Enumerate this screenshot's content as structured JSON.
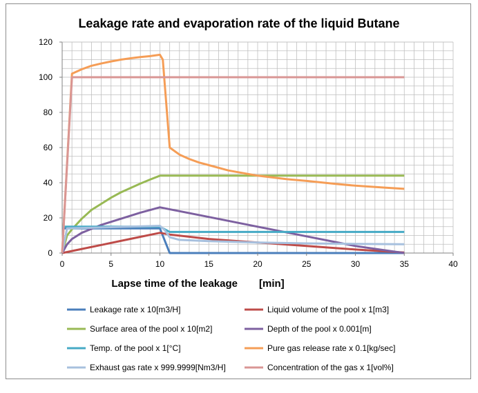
{
  "chart_data": {
    "type": "line",
    "title": "Leakage rate and evaporation rate of the liquid Butane",
    "xlabel": "Lapse time of the leakage",
    "xunit": "[min]",
    "ylabel": "",
    "xlim": [
      0,
      40
    ],
    "ylim": [
      0,
      120
    ],
    "x_ticks": [
      0,
      5,
      10,
      15,
      20,
      25,
      30,
      35,
      40
    ],
    "y_ticks": [
      0,
      20,
      40,
      60,
      80,
      100,
      120
    ],
    "grid": true,
    "legend_position": "bottom",
    "series": [
      {
        "name": "Leakage rate x 10[m3/H]",
        "color": "#4a7ebb",
        "x": [
          0,
          0.3,
          10,
          11,
          35
        ],
        "y": [
          14,
          14,
          14,
          0,
          0
        ]
      },
      {
        "name": "Liquid volume of the pool x 1[m3]",
        "color": "#be4b48",
        "x": [
          0,
          2,
          4,
          6,
          8,
          10,
          11,
          15,
          20,
          25,
          30,
          35
        ],
        "y": [
          0,
          2.3,
          4.6,
          6.9,
          9.2,
          11.5,
          10.5,
          8,
          6,
          4,
          2,
          0.3
        ]
      },
      {
        "name": "Surface area of the pool x 10[m2]",
        "color": "#98b954",
        "x": [
          0,
          0.5,
          1,
          2,
          3,
          4,
          5,
          6,
          7,
          8,
          9,
          10,
          11,
          35
        ],
        "y": [
          0,
          10,
          13.5,
          19.5,
          24.5,
          28,
          31.5,
          34.5,
          37,
          39.5,
          41.8,
          44,
          44,
          44
        ]
      },
      {
        "name": "Depth of the pool x 0.001[m]",
        "color": "#7d60a0",
        "x": [
          0,
          0.5,
          1,
          2,
          4,
          6,
          8,
          10,
          15,
          20,
          25,
          30,
          35
        ],
        "y": [
          0,
          5,
          8,
          11.5,
          16,
          19.5,
          23,
          26,
          20.5,
          15,
          9.5,
          4,
          0
        ]
      },
      {
        "name": "Temp. of the pool x 1[°C]",
        "color": "#46aac5",
        "x": [
          0,
          0.5,
          10,
          11,
          35
        ],
        "y": [
          15,
          15,
          15,
          12,
          12
        ]
      },
      {
        "name": "Pure gas release rate x 0.1[kg/sec]",
        "color": "#f59d56",
        "x": [
          0,
          1,
          2,
          3,
          4,
          5,
          6,
          7,
          8,
          9,
          10,
          10.3,
          11,
          12,
          13,
          14,
          15,
          17,
          20,
          23,
          25,
          28,
          30,
          33,
          35
        ],
        "y": [
          0,
          102,
          104.5,
          106.5,
          107.8,
          109,
          110,
          110.8,
          111.5,
          112,
          112.8,
          110,
          60,
          56,
          53.5,
          51.5,
          50,
          47,
          44,
          42,
          41,
          39.3,
          38.3,
          37.2,
          36.5
        ]
      },
      {
        "name": "Exhaust gas rate x 999.9999[Nm3/H]",
        "color": "#a7c0de",
        "x": [
          0,
          0.5,
          10,
          10.5,
          11,
          12,
          15,
          20,
          25,
          30,
          35
        ],
        "y": [
          0,
          14,
          15.5,
          13,
          9,
          7.5,
          6.8,
          6,
          5.5,
          5.2,
          5
        ]
      },
      {
        "name": "Concentration of the gas x 1[vol%]",
        "color": "#d99694",
        "x": [
          0,
          1,
          35
        ],
        "y": [
          0,
          100,
          100
        ]
      }
    ]
  }
}
